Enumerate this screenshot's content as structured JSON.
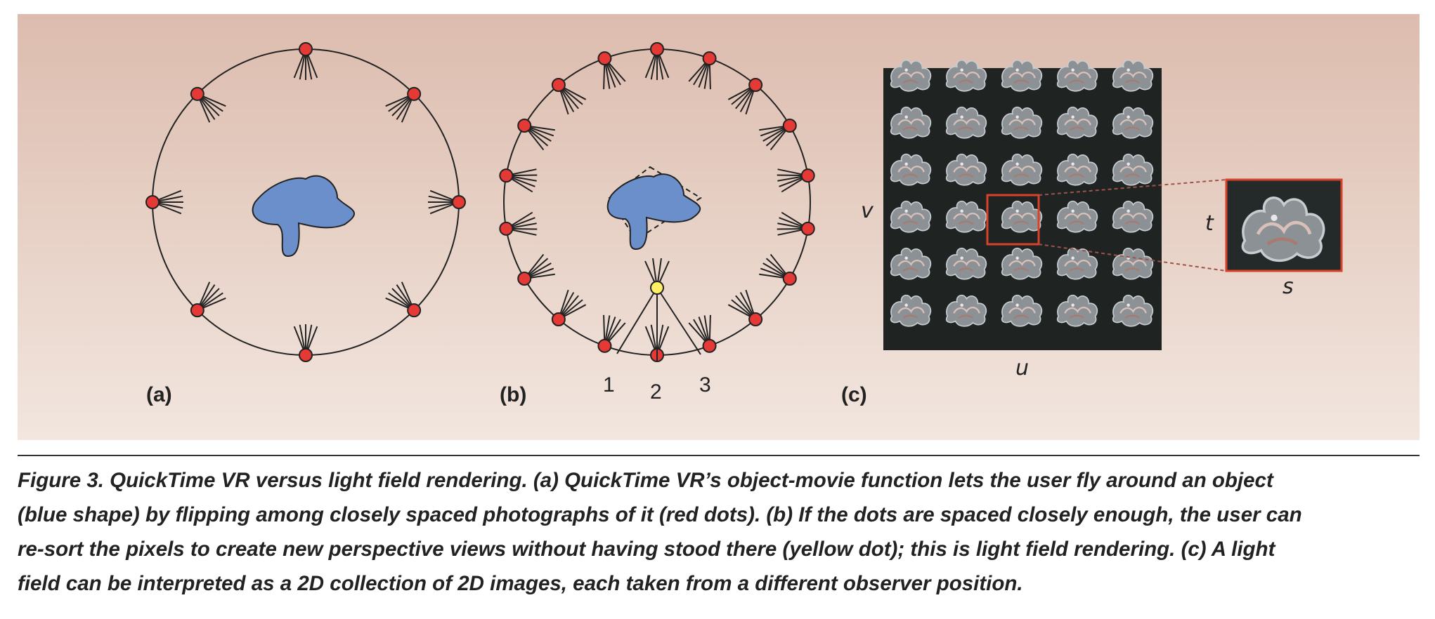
{
  "figure": {
    "labels": {
      "a": "(a)",
      "b": "(b)",
      "c": "(c)"
    },
    "camera_numbers": [
      "1",
      "2",
      "3"
    ],
    "axes": {
      "v": "v",
      "u": "u",
      "t": "t",
      "s": "s"
    },
    "colors": {
      "camera_dot": "#e53935",
      "novel_view_dot": "#fff066",
      "object": "#6b8fca",
      "highlight_box": "#d8412a"
    },
    "light_field_grid": {
      "rows": 6,
      "columns": 5,
      "highlighted_row": 3,
      "highlighted_column": 2
    }
  },
  "caption": {
    "lines": [
      "Figure 3. QuickTime VR versus light field rendering. (a) QuickTime VR’s object-movie function lets the user fly around an object",
      "(blue shape) by flipping among closely spaced photographs of it (red dots). (b) If the dots are spaced closely enough, the user can",
      "re-sort the pixels to create new perspective views without having stood there (yellow dot); this is light field rendering. (c) A light",
      "field can be interpreted as a 2D collection of 2D images, each taken from a different observer position."
    ]
  }
}
